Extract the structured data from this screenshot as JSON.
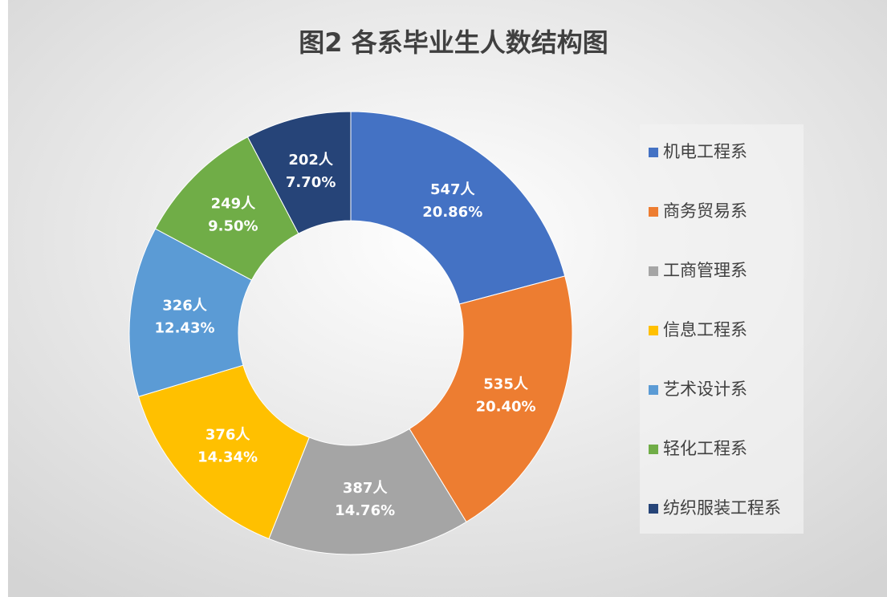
{
  "chart_data": {
    "type": "donut",
    "title": "图2  各系毕业生人数结构图",
    "categories": [
      "机电工程系",
      "商务贸易系",
      "工商管理系",
      "信息工程系",
      "艺术设计系",
      "轻化工程系",
      "纺织服装工程系"
    ],
    "values": [
      547,
      535,
      387,
      376,
      326,
      249,
      202
    ],
    "value_labels": [
      "547人",
      "535人",
      "387人",
      "376人",
      "326人",
      "249人",
      "202人"
    ],
    "percents": [
      20.86,
      20.4,
      14.76,
      14.34,
      12.43,
      9.5,
      7.7
    ],
    "percent_labels": [
      "20.86%",
      "20.40%",
      "14.76%",
      "14.34%",
      "12.43%",
      "9.50%",
      "7.70%"
    ],
    "colors": [
      "#4472c4",
      "#ed7d31",
      "#a5a5a5",
      "#ffc000",
      "#5b9bd5",
      "#70ad47",
      "#264478"
    ],
    "legend": "right"
  }
}
